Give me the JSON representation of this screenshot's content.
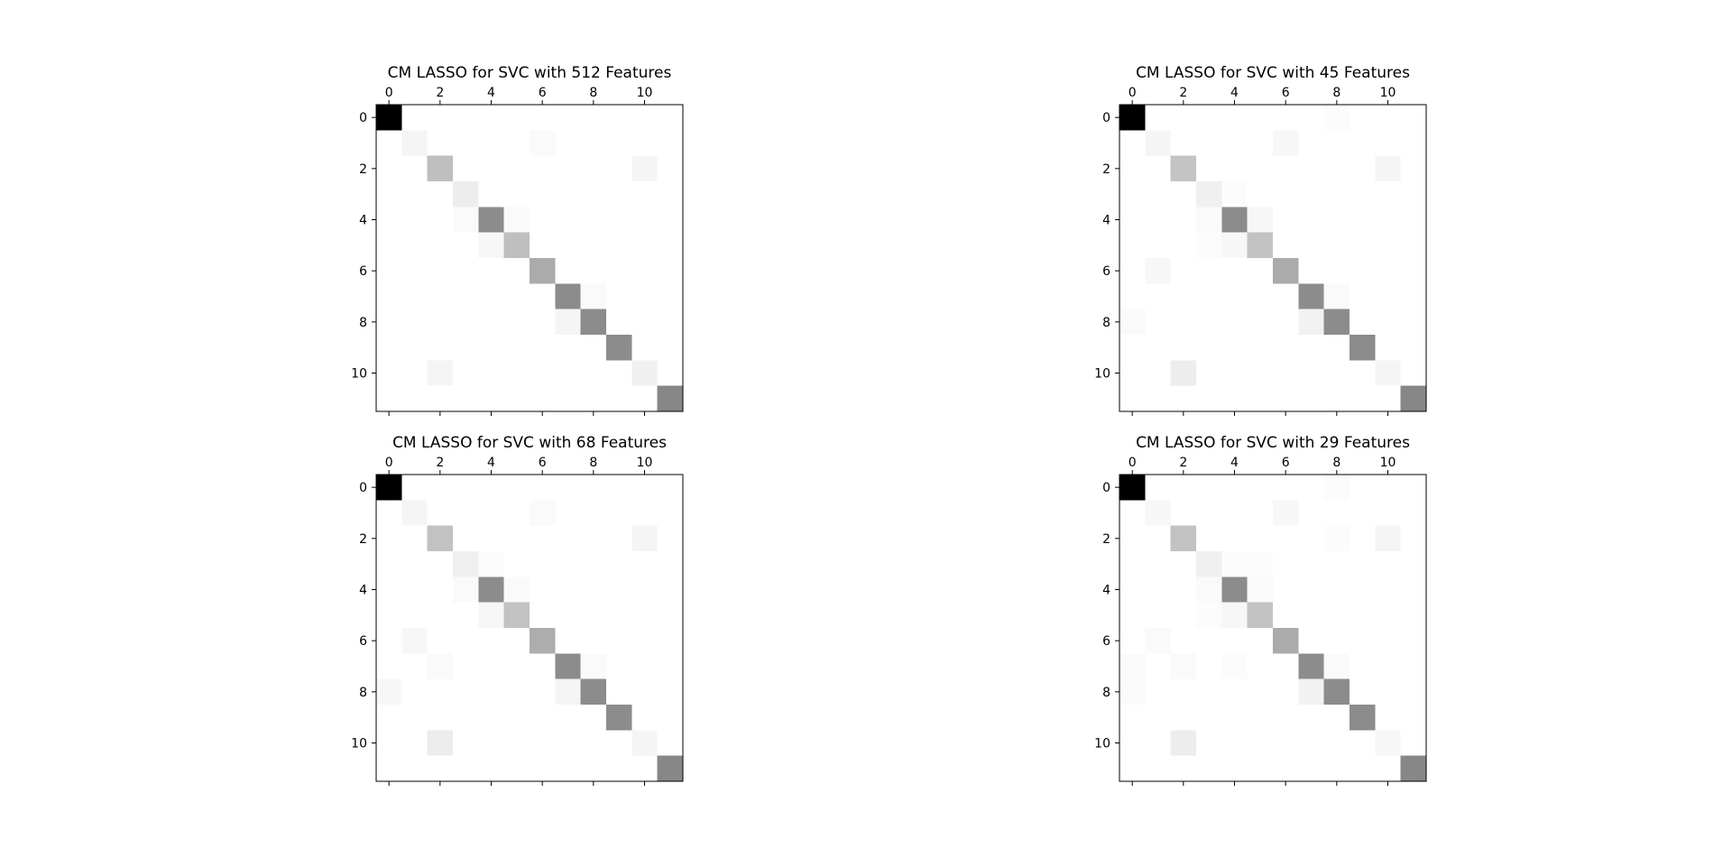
{
  "chart_data": [
    {
      "type": "heatmap",
      "title": "CM LASSO for SVC with 512 Features",
      "x_ticks": [
        "0",
        "2",
        "4",
        "6",
        "8",
        "10"
      ],
      "y_ticks": [
        "0",
        "2",
        "4",
        "6",
        "8",
        "10"
      ],
      "grid": false,
      "colormap": "gray_r",
      "value_scale": "relative intensity 0-1 (dark = high)",
      "matrix": [
        [
          1.0,
          0,
          0,
          0,
          0,
          0,
          0,
          0,
          0,
          0,
          0,
          0
        ],
        [
          0,
          0.04,
          0,
          0,
          0,
          0,
          0.02,
          0,
          0,
          0,
          0,
          0
        ],
        [
          0,
          0,
          0.25,
          0,
          0,
          0,
          0,
          0,
          0,
          0,
          0.04,
          0
        ],
        [
          0,
          0,
          0,
          0.07,
          0,
          0,
          0,
          0,
          0,
          0,
          0,
          0
        ],
        [
          0,
          0,
          0,
          0.02,
          0.45,
          0.02,
          0,
          0,
          0,
          0,
          0,
          0
        ],
        [
          0,
          0,
          0,
          0,
          0.03,
          0.25,
          0,
          0,
          0,
          0,
          0,
          0
        ],
        [
          0,
          0,
          0,
          0,
          0,
          0,
          0.33,
          0,
          0,
          0,
          0,
          0
        ],
        [
          0,
          0,
          0,
          0,
          0,
          0,
          0,
          0.45,
          0.02,
          0,
          0,
          0
        ],
        [
          0,
          0,
          0,
          0,
          0,
          0,
          0,
          0.04,
          0.45,
          0,
          0,
          0
        ],
        [
          0,
          0,
          0,
          0,
          0,
          0,
          0,
          0,
          0,
          0.45,
          0,
          0
        ],
        [
          0,
          0,
          0.04,
          0,
          0,
          0,
          0,
          0,
          0,
          0,
          0.06,
          0
        ],
        [
          0,
          0,
          0,
          0,
          0,
          0,
          0,
          0,
          0,
          0,
          0,
          0.47
        ]
      ]
    },
    {
      "type": "heatmap",
      "title": "CM LASSO for SVC with 45 Features",
      "x_ticks": [
        "0",
        "2",
        "4",
        "6",
        "8",
        "10"
      ],
      "y_ticks": [
        "0",
        "2",
        "4",
        "6",
        "8",
        "10"
      ],
      "grid": false,
      "colormap": "gray_r",
      "value_scale": "relative intensity 0-1 (dark = high)",
      "matrix": [
        [
          1.0,
          0,
          0,
          0,
          0,
          0,
          0,
          0,
          0.01,
          0,
          0,
          0
        ],
        [
          0,
          0.04,
          0,
          0,
          0,
          0,
          0.03,
          0,
          0,
          0,
          0,
          0
        ],
        [
          0,
          0,
          0.23,
          0,
          0,
          0,
          0,
          0,
          0,
          0,
          0.04,
          0
        ],
        [
          0,
          0,
          0,
          0.06,
          0.01,
          0,
          0,
          0,
          0,
          0,
          0,
          0
        ],
        [
          0,
          0,
          0,
          0.02,
          0.45,
          0.03,
          0,
          0,
          0,
          0,
          0,
          0
        ],
        [
          0,
          0,
          0,
          0.01,
          0.03,
          0.24,
          0,
          0,
          0,
          0,
          0,
          0
        ],
        [
          0,
          0.03,
          0,
          0,
          0,
          0,
          0.33,
          0,
          0,
          0,
          0,
          0
        ],
        [
          0,
          0,
          0,
          0,
          0,
          0,
          0,
          0.45,
          0.02,
          0,
          0,
          0
        ],
        [
          0.02,
          0,
          0,
          0,
          0,
          0,
          0,
          0.05,
          0.45,
          0,
          0,
          0
        ],
        [
          0,
          0,
          0,
          0,
          0,
          0,
          0,
          0,
          0,
          0.45,
          0,
          0
        ],
        [
          0,
          0,
          0.07,
          0,
          0,
          0,
          0,
          0,
          0,
          0,
          0.04,
          0
        ],
        [
          0,
          0,
          0,
          0,
          0,
          0,
          0,
          0,
          0,
          0,
          0,
          0.47
        ]
      ]
    },
    {
      "type": "heatmap",
      "title": "CM LASSO for SVC with 68 Features",
      "x_ticks": [
        "0",
        "2",
        "4",
        "6",
        "8",
        "10"
      ],
      "y_ticks": [
        "0",
        "2",
        "4",
        "6",
        "8",
        "10"
      ],
      "grid": false,
      "colormap": "gray_r",
      "value_scale": "relative intensity 0-1 (dark = high)",
      "matrix": [
        [
          1.0,
          0,
          0,
          0,
          0,
          0,
          0,
          0,
          0,
          0,
          0,
          0
        ],
        [
          0,
          0.04,
          0,
          0,
          0,
          0,
          0.02,
          0,
          0,
          0,
          0,
          0
        ],
        [
          0,
          0,
          0.24,
          0,
          0,
          0,
          0,
          0,
          0,
          0,
          0.04,
          0
        ],
        [
          0,
          0,
          0,
          0.06,
          0.01,
          0,
          0,
          0,
          0,
          0,
          0,
          0
        ],
        [
          0,
          0,
          0,
          0.02,
          0.45,
          0.02,
          0,
          0,
          0,
          0,
          0,
          0
        ],
        [
          0,
          0,
          0,
          0,
          0.03,
          0.24,
          0,
          0,
          0,
          0,
          0,
          0
        ],
        [
          0,
          0.03,
          0,
          0,
          0,
          0,
          0.32,
          0,
          0,
          0,
          0,
          0
        ],
        [
          0,
          0,
          0.02,
          0,
          0,
          0,
          0,
          0.45,
          0.02,
          0,
          0,
          0
        ],
        [
          0.03,
          0,
          0,
          0,
          0,
          0,
          0,
          0.04,
          0.45,
          0,
          0,
          0
        ],
        [
          0,
          0,
          0,
          0,
          0,
          0,
          0,
          0,
          0,
          0.45,
          0,
          0
        ],
        [
          0,
          0,
          0.07,
          0,
          0,
          0,
          0,
          0,
          0,
          0,
          0.04,
          0
        ],
        [
          0,
          0,
          0,
          0,
          0,
          0,
          0,
          0,
          0,
          0,
          0,
          0.47
        ]
      ]
    },
    {
      "type": "heatmap",
      "title": "CM LASSO for SVC with 29 Features",
      "x_ticks": [
        "0",
        "2",
        "4",
        "6",
        "8",
        "10"
      ],
      "y_ticks": [
        "0",
        "2",
        "4",
        "6",
        "8",
        "10"
      ],
      "grid": false,
      "colormap": "gray_r",
      "value_scale": "relative intensity 0-1 (dark = high)",
      "matrix": [
        [
          1.0,
          0,
          0,
          0,
          0,
          0,
          0,
          0,
          0.01,
          0,
          0,
          0
        ],
        [
          0,
          0.03,
          0,
          0,
          0,
          0,
          0.03,
          0,
          0,
          0,
          0,
          0
        ],
        [
          0,
          0,
          0.24,
          0,
          0,
          0,
          0,
          0,
          0.01,
          0,
          0.04,
          0
        ],
        [
          0,
          0,
          0,
          0.06,
          0.01,
          0.01,
          0,
          0,
          0,
          0,
          0,
          0
        ],
        [
          0,
          0,
          0,
          0.02,
          0.45,
          0.02,
          0,
          0,
          0,
          0,
          0,
          0
        ],
        [
          0,
          0,
          0,
          0.01,
          0.03,
          0.24,
          0,
          0,
          0,
          0,
          0,
          0
        ],
        [
          0,
          0.02,
          0,
          0,
          0,
          0,
          0.33,
          0,
          0,
          0,
          0,
          0
        ],
        [
          0.02,
          0,
          0.02,
          0,
          0.01,
          0,
          0,
          0.45,
          0.02,
          0,
          0,
          0
        ],
        [
          0.02,
          0,
          0,
          0,
          0,
          0,
          0,
          0.05,
          0.45,
          0,
          0,
          0
        ],
        [
          0,
          0,
          0,
          0,
          0,
          0,
          0,
          0,
          0,
          0.45,
          0,
          0
        ],
        [
          0,
          0,
          0.07,
          0,
          0,
          0,
          0,
          0,
          0,
          0,
          0.03,
          0
        ],
        [
          0,
          0,
          0,
          0,
          0,
          0,
          0,
          0,
          0,
          0,
          0,
          0.47
        ]
      ]
    }
  ]
}
